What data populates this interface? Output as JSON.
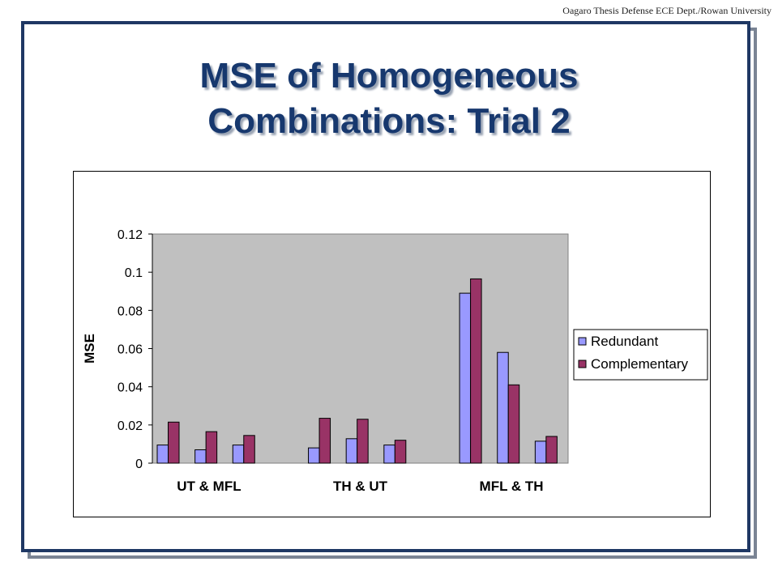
{
  "header_note": "Oagaro Thesis Defense ECE Dept./Rowan University",
  "slide_title_line1": "MSE of Homogeneous",
  "slide_title_line2": "Combinations: Trial 2",
  "colors": {
    "title": "#17386e",
    "frame": "#1f3864",
    "plot_area": "#c0c0c0",
    "redundant": "#9999ff",
    "complementary": "#993366"
  },
  "chart_data": {
    "type": "bar",
    "ylabel": "MSE",
    "ylim": [
      0,
      0.12
    ],
    "yticks": [
      "0",
      "0.02",
      "0.04",
      "0.06",
      "0.08",
      "0.1",
      "0.12"
    ],
    "ytick_values": [
      0,
      0.02,
      0.04,
      0.06,
      0.08,
      0.1,
      0.12
    ],
    "category_labels": [
      "UT & MFL",
      "TH & UT",
      "MFL & TH"
    ],
    "groups_per_category": 3,
    "legend_position": "right",
    "series": [
      {
        "name": "Redundant",
        "color": "#9999ff",
        "values": [
          0.0095,
          0.007,
          0.0095,
          null,
          0.008,
          0.0128,
          0.0095,
          null,
          0.089,
          0.058,
          0.0115
        ]
      },
      {
        "name": "Complementary",
        "color": "#993366",
        "values": [
          0.0215,
          0.0165,
          0.0145,
          null,
          0.0235,
          0.023,
          0.012,
          null,
          0.0965,
          0.041,
          0.014
        ]
      }
    ]
  }
}
